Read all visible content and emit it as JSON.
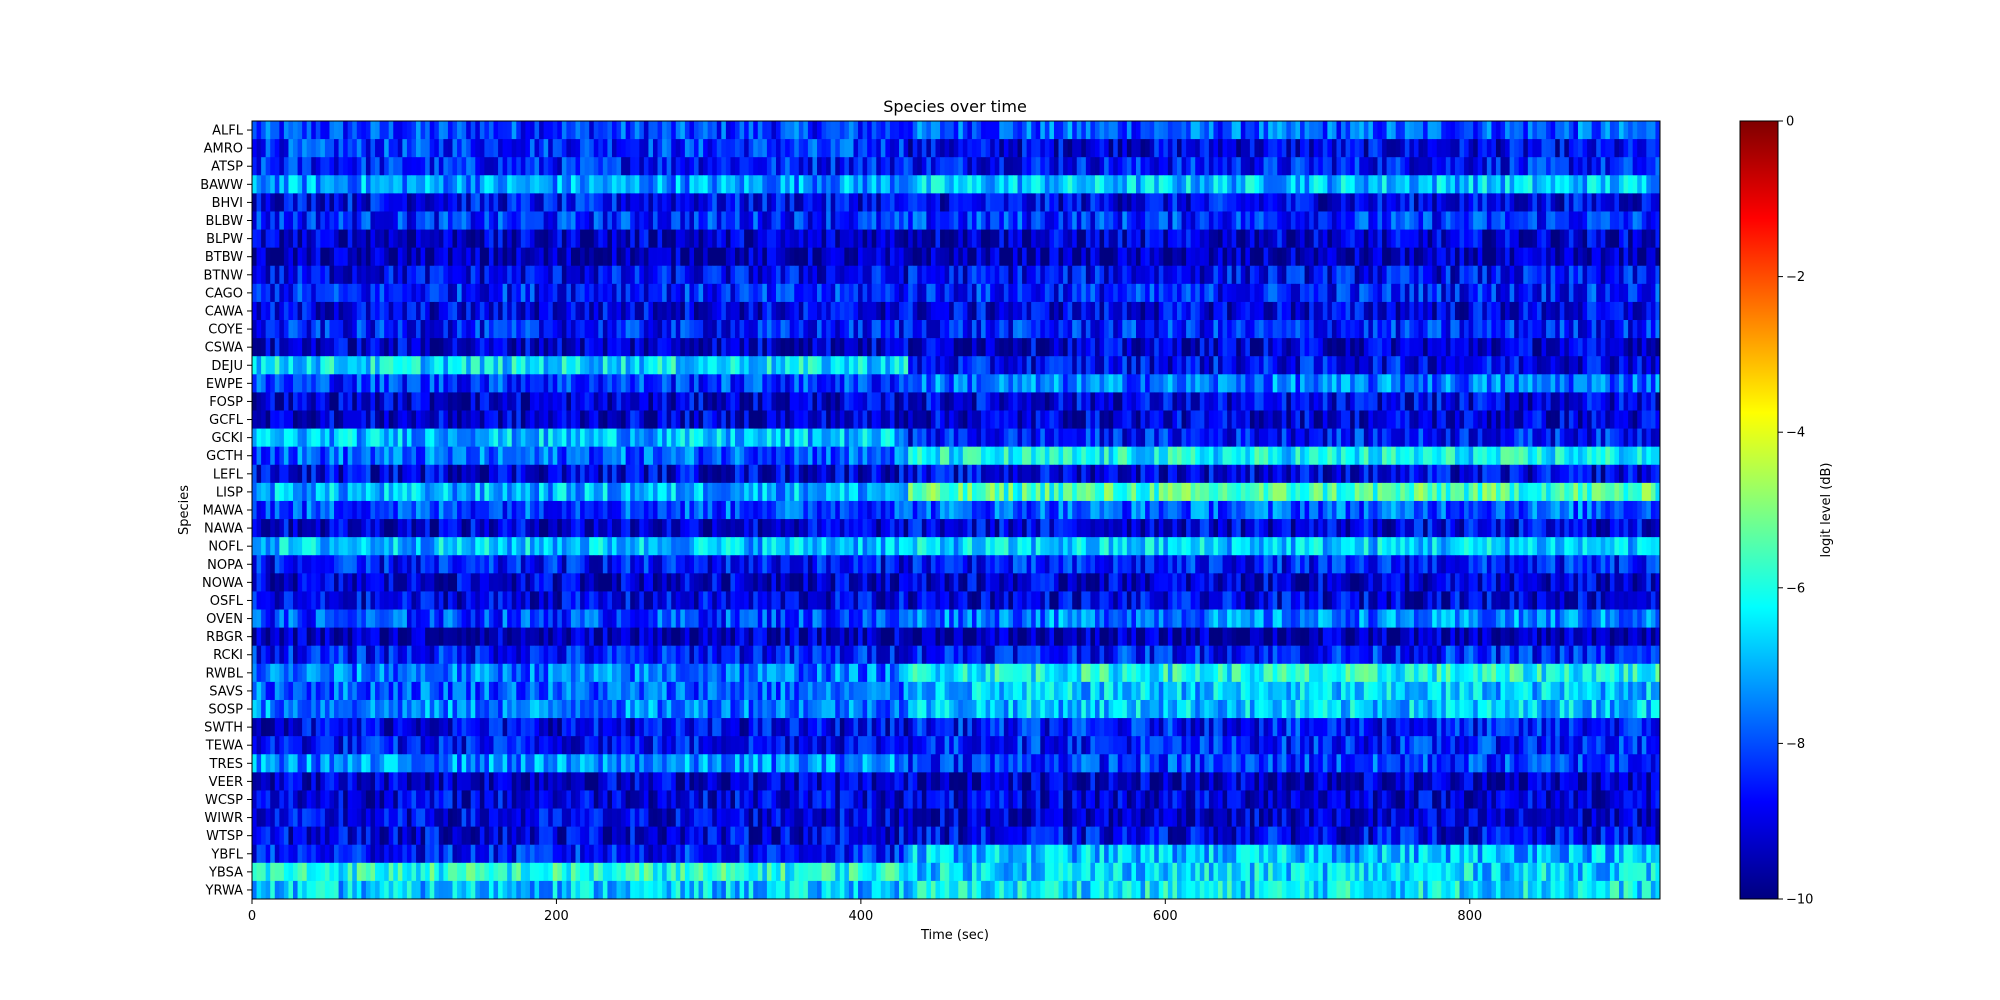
{
  "chart_data": {
    "type": "heatmap",
    "title": "Species over time",
    "xlabel": "Time (sec)",
    "ylabel": "Species",
    "xlim": [
      0,
      925
    ],
    "xticks": [
      0,
      200,
      400,
      600,
      800
    ],
    "species": [
      "ALFL",
      "AMRO",
      "ATSP",
      "BAWW",
      "BHVI",
      "BLBW",
      "BLPW",
      "BTBW",
      "BTNW",
      "CAGO",
      "CAWA",
      "COYE",
      "CSWA",
      "DEJU",
      "EWPE",
      "FOSP",
      "GCFL",
      "GCKI",
      "GCTH",
      "LEFL",
      "LISP",
      "MAWA",
      "NAWA",
      "NOFL",
      "NOPA",
      "NOWA",
      "OSFL",
      "OVEN",
      "RBGR",
      "RCKI",
      "RWBL",
      "SAVS",
      "SOSP",
      "SWTH",
      "TEWA",
      "TRES",
      "VEER",
      "WCSP",
      "WIWR",
      "WTSP",
      "YBFL",
      "YBSA",
      "YRWA"
    ],
    "colorbar": {
      "label": "logit level (dB)",
      "min": -10,
      "max": 0,
      "ticks": [
        0,
        -2,
        -4,
        -6,
        -8,
        -10
      ],
      "tick_labels": [
        "0",
        "−2",
        "−4",
        "−6",
        "−8",
        "−10"
      ],
      "colormap": "jet"
    },
    "phase_change_sec": 430,
    "time_bin_sec": 3,
    "species_mean_levels": {
      "ALFL": {
        "early": -8.2,
        "late": -7.9
      },
      "AMRO": {
        "early": -8.3,
        "late": -9.0
      },
      "ATSP": {
        "early": -8.5,
        "late": -8.6
      },
      "BAWW": {
        "early": -7.2,
        "late": -6.8
      },
      "BHVI": {
        "early": -8.8,
        "late": -8.9
      },
      "BLBW": {
        "early": -8.4,
        "late": -8.3
      },
      "BLPW": {
        "early": -9.3,
        "late": -9.2
      },
      "BTBW": {
        "early": -9.6,
        "late": -9.6
      },
      "BTNW": {
        "early": -8.9,
        "late": -8.8
      },
      "CAGO": {
        "early": -8.5,
        "late": -8.5
      },
      "CAWA": {
        "early": -9.0,
        "late": -9.0
      },
      "COYE": {
        "early": -8.6,
        "late": -8.5
      },
      "CSWA": {
        "early": -9.2,
        "late": -9.2
      },
      "DEJU": {
        "early": -6.5,
        "late": -8.8
      },
      "EWPE": {
        "early": -8.2,
        "late": -7.6
      },
      "FOSP": {
        "early": -9.2,
        "late": -9.0
      },
      "GCFL": {
        "early": -9.2,
        "late": -9.1
      },
      "GCKI": {
        "early": -6.9,
        "late": -8.6
      },
      "GCTH": {
        "early": -7.8,
        "late": -6.3
      },
      "LEFL": {
        "early": -9.0,
        "late": -9.0
      },
      "LISP": {
        "early": -7.0,
        "late": -5.6
      },
      "MAWA": {
        "early": -8.0,
        "late": -7.8
      },
      "NAWA": {
        "early": -9.1,
        "late": -9.0
      },
      "NOFL": {
        "early": -6.8,
        "late": -6.7
      },
      "NOPA": {
        "early": -8.7,
        "late": -8.6
      },
      "NOWA": {
        "early": -9.2,
        "late": -9.2
      },
      "OSFL": {
        "early": -9.0,
        "late": -9.0
      },
      "OVEN": {
        "early": -8.1,
        "late": -7.5
      },
      "RBGR": {
        "early": -9.5,
        "late": -9.6
      },
      "RCKI": {
        "early": -8.6,
        "late": -8.5
      },
      "RWBL": {
        "early": -7.6,
        "late": -6.1
      },
      "SAVS": {
        "early": -7.8,
        "late": -6.8
      },
      "SOSP": {
        "early": -7.5,
        "late": -6.8
      },
      "SWTH": {
        "early": -8.9,
        "late": -8.6
      },
      "TEWA": {
        "early": -8.7,
        "late": -8.5
      },
      "TRES": {
        "early": -7.4,
        "late": -8.2
      },
      "VEER": {
        "early": -9.2,
        "late": -9.3
      },
      "WCSP": {
        "early": -9.0,
        "late": -9.1
      },
      "WIWR": {
        "early": -9.0,
        "late": -9.3
      },
      "WTSP": {
        "early": -9.0,
        "late": -8.9
      },
      "YBFL": {
        "early": -8.6,
        "late": -6.9
      },
      "YBSA": {
        "early": -6.0,
        "late": -6.6
      },
      "YRWA": {
        "early": -6.8,
        "late": -6.4
      }
    }
  }
}
